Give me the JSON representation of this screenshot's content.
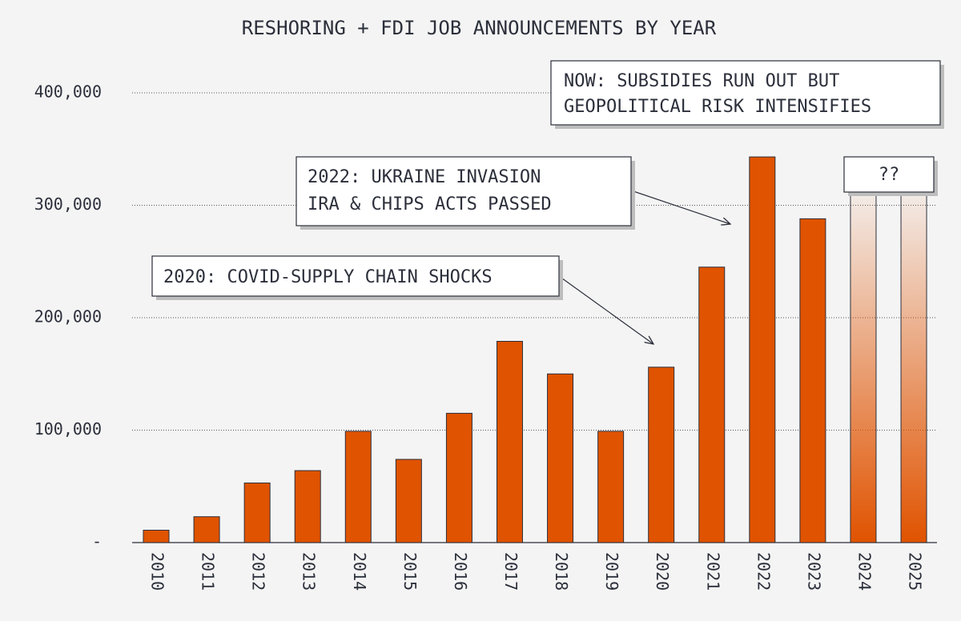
{
  "chart_data": {
    "type": "bar",
    "title": "RESHORING + FDI JOB ANNOUNCEMENTS BY YEAR",
    "categories": [
      "2010",
      "2011",
      "2012",
      "2013",
      "2014",
      "2015",
      "2016",
      "2017",
      "2018",
      "2019",
      "2020",
      "2021",
      "2022",
      "2023",
      "2024",
      "2025"
    ],
    "values": [
      11000,
      23000,
      53000,
      64000,
      99000,
      74000,
      115000,
      179000,
      150000,
      99000,
      156000,
      245000,
      343000,
      288000,
      null,
      null
    ],
    "color": "#e05300",
    "ylim": [
      0,
      400000
    ],
    "yticks": [
      {
        "value": 0,
        "label": "-"
      },
      {
        "value": 100000,
        "label": "100,000"
      },
      {
        "value": 200000,
        "label": "200,000"
      },
      {
        "value": 300000,
        "label": "300,000"
      },
      {
        "value": 400000,
        "label": "400,000"
      }
    ],
    "grid": true,
    "annotations": [
      {
        "lines": [
          "NOW: SUBSIDIES RUN OUT BUT",
          "GEOPOLITICAL RISK INTENSIFIES"
        ]
      },
      {
        "lines": [
          "2022: UKRAINE INVASION",
          "IRA & CHIPS ACTS PASSED"
        ]
      },
      {
        "lines": [
          "2020: COVID-SUPPLY CHAIN SHOCKS"
        ]
      },
      {
        "lines": [
          "??"
        ]
      }
    ]
  }
}
